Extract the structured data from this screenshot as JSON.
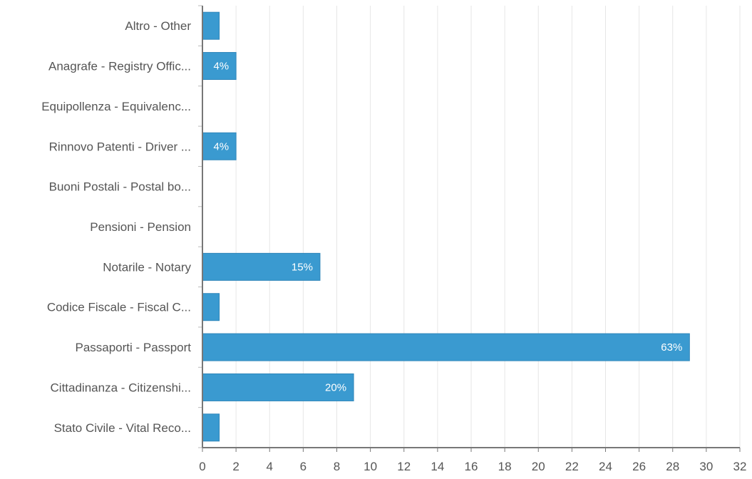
{
  "chart_data": {
    "type": "bar",
    "orientation": "horizontal",
    "categories": [
      "Altro - Other",
      "Anagrafe - Registry Offic...",
      "Equipollenza - Equivalenc...",
      "Rinnovo Patenti - Driver ...",
      "Buoni Postali - Postal bo...",
      "Pensioni - Pension",
      "Notarile - Notary",
      "Codice Fiscale - Fiscal C...",
      "Passaporti - Passport",
      "Cittadinanza - Citizenshi...",
      "Stato Civile - Vital Reco..."
    ],
    "values": [
      1,
      2,
      0,
      2,
      0,
      0,
      7,
      1,
      29,
      9,
      1
    ],
    "data_labels": [
      "",
      "4%",
      "",
      "4%",
      "",
      "",
      "15%",
      "",
      "63%",
      "20%",
      ""
    ],
    "x_ticks": [
      "0",
      "2",
      "4",
      "6",
      "8",
      "10",
      "12",
      "14",
      "16",
      "18",
      "20",
      "22",
      "24",
      "26",
      "28",
      "30",
      "32"
    ],
    "xlim": [
      0,
      32
    ],
    "grid": true,
    "legend": "none",
    "colors": {
      "bar": "#3a9ad0",
      "bar_border": "#2f86ba",
      "grid": "#e6e6e6",
      "axis": "#777777",
      "text": "#555555"
    }
  }
}
